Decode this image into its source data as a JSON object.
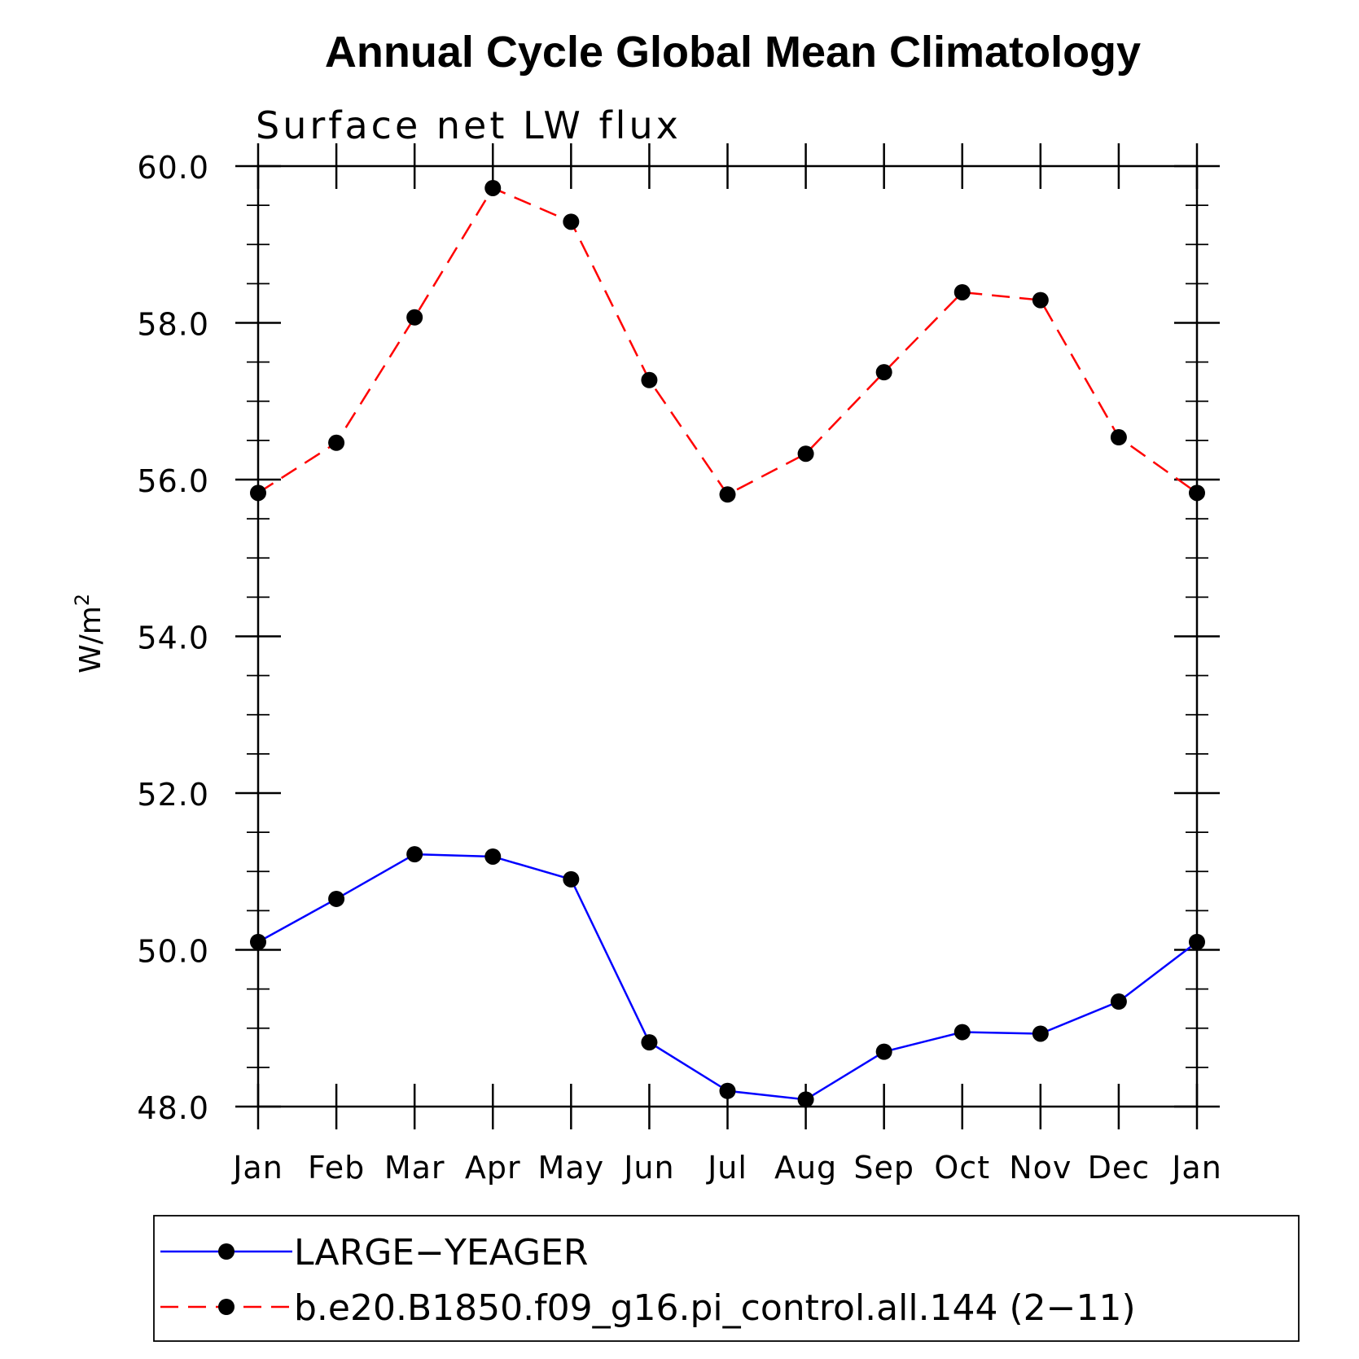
{
  "chart_data": {
    "type": "line",
    "title": "Annual Cycle Global Mean Climatology",
    "subtitle": "Surface net LW flux",
    "xlabel": "",
    "ylabel": "W/m",
    "ylabel_superscript": "2",
    "categories": [
      "Jan",
      "Feb",
      "Mar",
      "Apr",
      "May",
      "Jun",
      "Jul",
      "Aug",
      "Sep",
      "Oct",
      "Nov",
      "Dec",
      "Jan"
    ],
    "ylim": [
      48.0,
      60.0
    ],
    "yticks": [
      "48.0",
      "50.0",
      "52.0",
      "54.0",
      "56.0",
      "58.0",
      "60.0"
    ],
    "grid": false,
    "legend_position": "bottom",
    "series": [
      {
        "name": "LARGE−YEAGER",
        "color": "#0000ff",
        "line_style": "solid",
        "marker": "filled-circle",
        "values": [
          50.1,
          50.65,
          51.22,
          51.19,
          50.9,
          48.82,
          48.2,
          48.09,
          48.7,
          48.95,
          48.93,
          49.34,
          50.1
        ]
      },
      {
        "name": "b.e20.B1850.f09_g16.pi_control.all.144 (2−11)",
        "color": "#ff0000",
        "line_style": "dashed",
        "marker": "filled-circle",
        "values": [
          55.83,
          56.47,
          58.07,
          59.72,
          59.29,
          57.27,
          55.81,
          56.33,
          57.37,
          58.39,
          58.29,
          56.54,
          55.83
        ]
      }
    ]
  }
}
